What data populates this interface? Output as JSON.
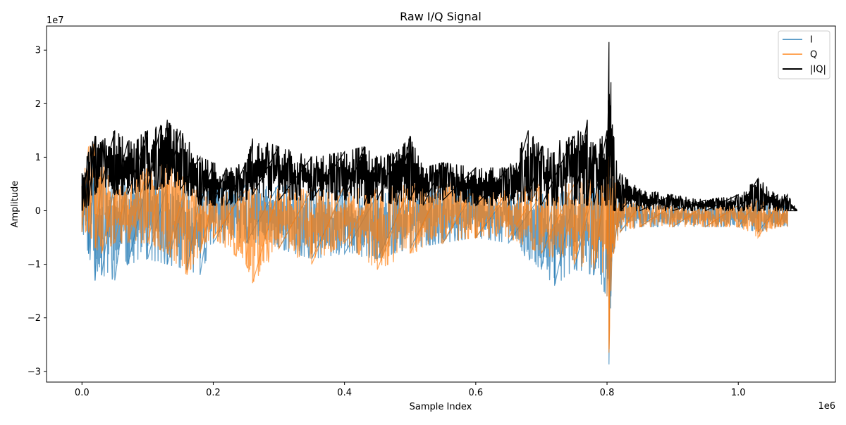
{
  "chart_data": {
    "type": "line",
    "title": "Raw I/Q Signal",
    "xlabel": "Sample Index",
    "ylabel": "Amplitude",
    "x_scale_label": "1e6",
    "y_scale_label": "1e7",
    "xlim": [
      -0.054,
      1.148
    ],
    "ylim": [
      -3.2,
      3.45
    ],
    "x_ticks": [
      0.0,
      0.2,
      0.4,
      0.6,
      0.8,
      1.0
    ],
    "x_tick_labels": [
      "0.0",
      "0.2",
      "0.4",
      "0.6",
      "0.8",
      "1.0"
    ],
    "y_ticks": [
      -3,
      -2,
      -1,
      0,
      1,
      2,
      3
    ],
    "y_tick_labels": [
      "−3",
      "−2",
      "−1",
      "0",
      "1",
      "2",
      "3"
    ],
    "grid": false,
    "legend_position": "top-right",
    "series": [
      {
        "name": "I",
        "color": "#1f77b4",
        "alpha": 0.7,
        "envelope": {
          "x": [
            0.0,
            0.01,
            0.02,
            0.03,
            0.05,
            0.07,
            0.1,
            0.13,
            0.16,
            0.18,
            0.2,
            0.25,
            0.3,
            0.35,
            0.4,
            0.45,
            0.5,
            0.55,
            0.6,
            0.65,
            0.7,
            0.72,
            0.75,
            0.78,
            0.8,
            0.803,
            0.806,
            0.81,
            0.82,
            0.85,
            0.9,
            0.95,
            1.0,
            1.03,
            1.06,
            1.075
          ],
          "upper": [
            0.6,
            1.1,
            0.9,
            0.7,
            0.6,
            0.5,
            0.6,
            0.5,
            0.4,
            0.3,
            0.4,
            0.5,
            0.5,
            0.4,
            0.4,
            0.3,
            0.4,
            0.5,
            0.4,
            0.3,
            0.3,
            0.4,
            0.3,
            0.4,
            0.8,
            1.4,
            0.9,
            0.5,
            0.2,
            0.1,
            0.1,
            0.1,
            0.1,
            0.2,
            0.1,
            0.1
          ],
          "lower": [
            -0.4,
            -0.8,
            -1.3,
            -1.2,
            -1.3,
            -1.0,
            -0.9,
            -1.0,
            -1.1,
            -1.2,
            -0.6,
            -0.6,
            -0.7,
            -0.9,
            -0.8,
            -0.9,
            -0.7,
            -0.6,
            -0.5,
            -0.6,
            -1.1,
            -1.4,
            -1.1,
            -1.2,
            -1.6,
            -2.87,
            -1.6,
            -0.8,
            -0.4,
            -0.3,
            -0.3,
            -0.3,
            -0.3,
            -0.4,
            -0.3,
            -0.3
          ]
        }
      },
      {
        "name": "Q",
        "color": "#ff7f0e",
        "alpha": 0.7,
        "envelope": {
          "x": [
            0.0,
            0.01,
            0.02,
            0.03,
            0.05,
            0.07,
            0.1,
            0.13,
            0.16,
            0.18,
            0.2,
            0.25,
            0.26,
            0.3,
            0.35,
            0.4,
            0.45,
            0.5,
            0.55,
            0.6,
            0.65,
            0.7,
            0.75,
            0.78,
            0.8,
            0.803,
            0.806,
            0.81,
            0.82,
            0.85,
            0.9,
            0.95,
            1.0,
            1.03,
            1.06,
            1.075
          ],
          "upper": [
            0.5,
            1.2,
            1.25,
            0.9,
            0.5,
            0.5,
            0.8,
            1.1,
            0.6,
            0.3,
            0.3,
            0.4,
            0.5,
            0.4,
            0.4,
            0.5,
            0.4,
            0.5,
            0.6,
            0.5,
            0.4,
            0.5,
            0.5,
            0.6,
            0.9,
            1.8,
            1.1,
            0.6,
            0.3,
            0.1,
            0.1,
            0.1,
            0.1,
            0.2,
            0.1,
            0.1
          ],
          "lower": [
            -0.4,
            -0.4,
            -0.7,
            -0.8,
            -0.6,
            -0.6,
            -0.6,
            -0.8,
            -1.2,
            -0.8,
            -0.5,
            -1.0,
            -1.35,
            -0.7,
            -1.0,
            -0.6,
            -1.1,
            -0.8,
            -0.6,
            -0.5,
            -0.5,
            -0.8,
            -1.0,
            -1.1,
            -1.6,
            -2.65,
            -1.5,
            -0.8,
            -0.4,
            -0.3,
            -0.3,
            -0.3,
            -0.3,
            -0.5,
            -0.3,
            -0.3
          ]
        }
      },
      {
        "name": "|IQ|",
        "color": "#000000",
        "alpha": 1.0,
        "envelope": {
          "x": [
            0.0,
            0.01,
            0.02,
            0.03,
            0.05,
            0.07,
            0.1,
            0.12,
            0.13,
            0.15,
            0.18,
            0.2,
            0.22,
            0.25,
            0.26,
            0.3,
            0.35,
            0.4,
            0.43,
            0.45,
            0.48,
            0.5,
            0.52,
            0.55,
            0.6,
            0.65,
            0.68,
            0.7,
            0.75,
            0.77,
            0.78,
            0.8,
            0.803,
            0.806,
            0.81,
            0.82,
            0.85,
            0.9,
            0.95,
            1.0,
            1.03,
            1.06,
            1.075,
            1.09
          ],
          "upper": [
            0.7,
            1.1,
            1.4,
            1.3,
            1.5,
            1.3,
            1.5,
            1.6,
            1.7,
            1.5,
            1.0,
            0.9,
            0.8,
            0.9,
            1.35,
            1.2,
            1.0,
            1.1,
            1.2,
            1.0,
            1.1,
            1.4,
            0.8,
            0.9,
            0.8,
            0.8,
            1.5,
            1.2,
            1.4,
            1.7,
            1.2,
            1.5,
            3.15,
            2.4,
            1.4,
            0.7,
            0.4,
            0.3,
            0.2,
            0.3,
            0.6,
            0.3,
            0.3,
            0.0
          ],
          "lower": [
            0.0,
            0.1,
            0.3,
            0.5,
            0.3,
            0.3,
            0.4,
            0.4,
            0.5,
            0.4,
            0.1,
            0.1,
            0.1,
            0.2,
            0.3,
            0.2,
            0.2,
            0.2,
            0.1,
            0.2,
            0.1,
            0.2,
            0.1,
            0.2,
            0.1,
            0.1,
            0.2,
            0.1,
            0.1,
            0.1,
            0.1,
            0.1,
            0.2,
            0.1,
            0.0,
            0.0,
            0.0,
            0.0,
            0.0,
            0.0,
            0.0,
            0.0,
            0.0,
            0.0
          ]
        }
      }
    ]
  }
}
